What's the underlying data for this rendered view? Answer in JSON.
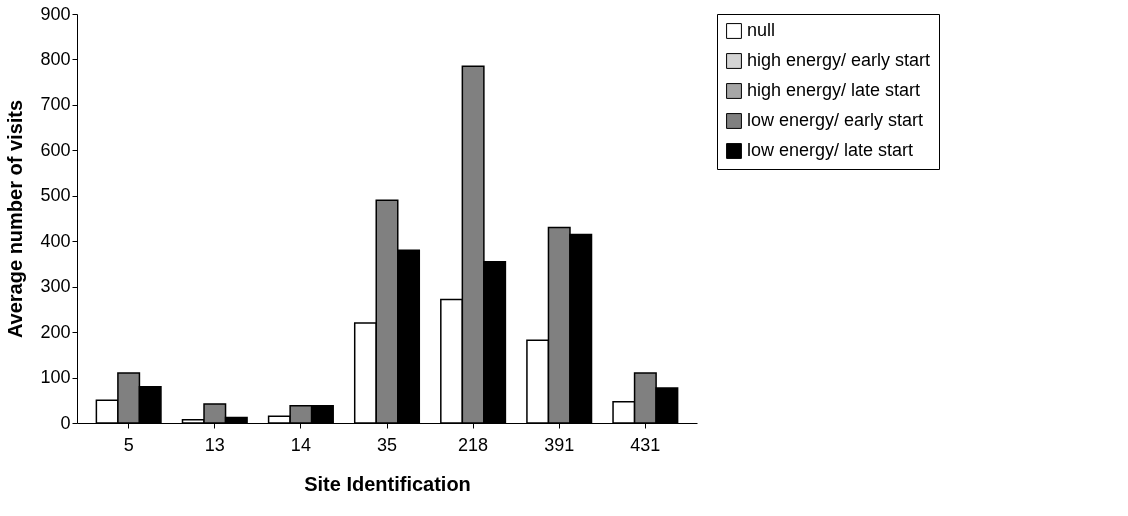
{
  "chart_data": {
    "type": "bar",
    "xlabel": "Site Identification",
    "ylabel": "Average number of visits",
    "categories": [
      "5",
      "13",
      "14",
      "35",
      "218",
      "391",
      "431"
    ],
    "series": [
      {
        "name": "null",
        "color": "#ffffff",
        "values": [
          50,
          7,
          15,
          220,
          272,
          182,
          47
        ]
      },
      {
        "name": "high energy/ early start",
        "color": "#d4d4d4",
        "values": [
          null,
          null,
          null,
          null,
          null,
          null,
          null
        ]
      },
      {
        "name": "high energy/ late start",
        "color": "#a6a6a6",
        "values": [
          null,
          null,
          null,
          null,
          null,
          null,
          null
        ]
      },
      {
        "name": "low energy/ early start",
        "color": "#808080",
        "values": [
          110,
          42,
          38,
          490,
          785,
          430,
          110
        ]
      },
      {
        "name": "low energy/ late start",
        "color": "#000000",
        "values": [
          80,
          12,
          38,
          380,
          355,
          415,
          77
        ]
      }
    ],
    "ylim": [
      0,
      900
    ],
    "yticks": [
      0,
      100,
      200,
      300,
      400,
      500,
      600,
      700,
      800,
      900
    ],
    "grid": false,
    "legend": "right"
  }
}
